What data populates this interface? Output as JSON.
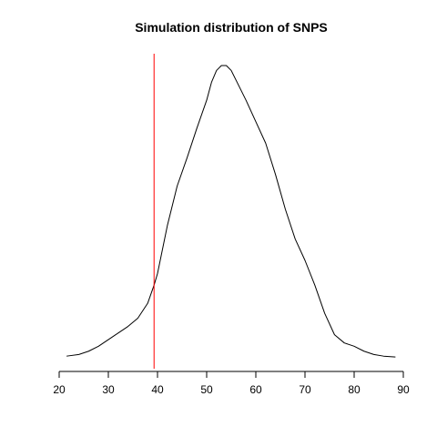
{
  "chart_data": {
    "type": "line",
    "title": "Simulation distribution of SNPS",
    "xlabel": "",
    "ylabel": "",
    "xlim": [
      20,
      90
    ],
    "x_ticks": [
      20,
      30,
      40,
      50,
      60,
      70,
      80,
      90
    ],
    "y_axis_shown": false,
    "grid": false,
    "legend": "none",
    "series": [
      {
        "kind": "density",
        "color": "#000000",
        "x": [
          21.5,
          24,
          26,
          28,
          30,
          32,
          34,
          36,
          38,
          39.3,
          40,
          42,
          44,
          46,
          48,
          50,
          51,
          52,
          53,
          54,
          55,
          56,
          58,
          60,
          62,
          64,
          66,
          68,
          70,
          72,
          74,
          76,
          78,
          80,
          82,
          84,
          86,
          88.4
        ],
        "y": [
          0.001,
          0.002,
          0.004,
          0.007,
          0.011,
          0.015,
          0.019,
          0.024,
          0.033,
          0.044,
          0.051,
          0.08,
          0.104,
          0.121,
          0.139,
          0.156,
          0.167,
          0.174,
          0.177,
          0.177,
          0.174,
          0.168,
          0.156,
          0.143,
          0.13,
          0.111,
          0.09,
          0.072,
          0.059,
          0.044,
          0.027,
          0.014,
          0.009,
          0.007,
          0.004,
          0.002,
          0.001,
          0.0005
        ]
      }
    ],
    "vline": {
      "x": 39.3,
      "color": "#ff0000"
    }
  }
}
